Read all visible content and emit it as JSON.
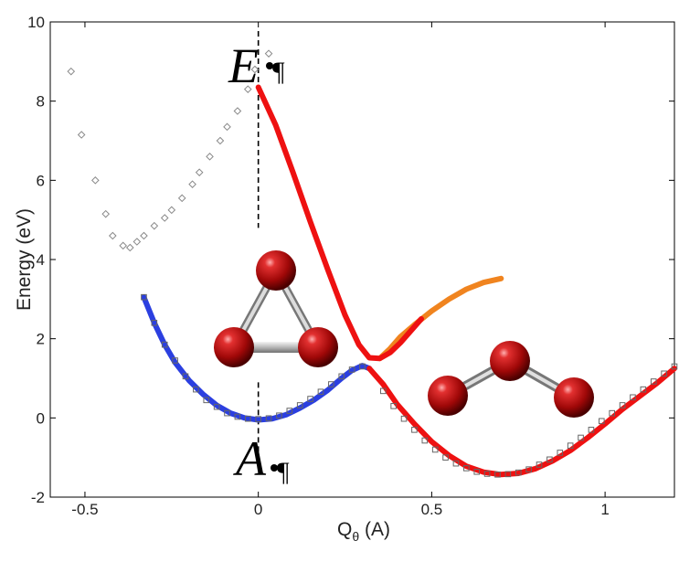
{
  "chart_data": {
    "type": "scatter",
    "xlabel": "Q",
    "xlabel_sub": "θ",
    "xlabel_unit": " (A)",
    "ylabel": "Energy (eV)",
    "xlim": [
      -0.6,
      1.2
    ],
    "ylim": [
      -2,
      10
    ],
    "xticks": [
      -0.5,
      0,
      0.5,
      1
    ],
    "xtick_labels": [
      "-0.5",
      "0",
      "0.5",
      "1"
    ],
    "yticks": [
      -2,
      0,
      2,
      4,
      6,
      8,
      10
    ],
    "ytick_labels": [
      "-2",
      "0",
      "2",
      "4",
      "6",
      "8",
      "10"
    ],
    "grid": false,
    "annotations": {
      "upper_state": "E",
      "lower_state": "A",
      "mark": "¶",
      "reference_line_x": 0
    },
    "series": [
      {
        "style": "markers-diamond",
        "color": "#888888",
        "x": [
          -0.54,
          -0.51,
          -0.47,
          -0.44,
          -0.42,
          -0.39,
          -0.37,
          -0.35,
          -0.33,
          -0.3,
          -0.27,
          -0.25,
          -0.22,
          -0.19,
          -0.17,
          -0.14,
          -0.11,
          -0.09,
          -0.06,
          -0.03,
          -0.01,
          0.03
        ],
        "y": [
          8.75,
          7.15,
          6.0,
          5.15,
          4.6,
          4.35,
          4.3,
          4.45,
          4.6,
          4.85,
          5.05,
          5.25,
          5.55,
          5.9,
          6.2,
          6.6,
          7.0,
          7.35,
          7.75,
          8.3,
          8.8,
          9.2
        ]
      },
      {
        "style": "line",
        "color": "#2b3fe0",
        "x": [
          -0.33,
          -0.3,
          -0.27,
          -0.24,
          -0.2,
          -0.16,
          -0.12,
          -0.08,
          -0.04,
          0.0,
          0.04,
          0.08,
          0.12,
          0.16,
          0.2,
          0.24,
          0.27,
          0.3,
          0.32
        ],
        "y": [
          3.05,
          2.4,
          1.85,
          1.4,
          0.95,
          0.6,
          0.32,
          0.12,
          0.0,
          -0.05,
          -0.02,
          0.08,
          0.25,
          0.45,
          0.7,
          1.0,
          1.2,
          1.32,
          1.25
        ]
      },
      {
        "style": "line",
        "color": "#f0841f",
        "x": [
          0.35,
          0.38,
          0.41,
          0.45,
          0.5,
          0.55,
          0.6,
          0.65,
          0.7
        ],
        "y": [
          1.5,
          1.75,
          2.05,
          2.35,
          2.7,
          3.0,
          3.25,
          3.42,
          3.52
        ]
      },
      {
        "style": "line",
        "color": "#ee1111",
        "x": [
          0.0,
          0.05,
          0.1,
          0.15,
          0.2,
          0.25,
          0.29,
          0.32,
          0.35,
          0.38,
          0.41,
          0.44,
          0.47
        ],
        "y": [
          8.35,
          7.4,
          6.2,
          4.95,
          3.75,
          2.6,
          1.85,
          1.52,
          1.5,
          1.65,
          1.9,
          2.2,
          2.5
        ]
      },
      {
        "style": "line",
        "color": "#ee1111",
        "x": [
          0.32,
          0.36,
          0.4,
          0.45,
          0.5,
          0.55,
          0.6,
          0.65,
          0.7,
          0.75,
          0.8,
          0.85,
          0.9,
          0.95,
          1.0,
          1.05,
          1.1,
          1.15,
          1.2
        ],
        "y": [
          1.25,
          0.85,
          0.35,
          -0.15,
          -0.6,
          -0.95,
          -1.22,
          -1.37,
          -1.43,
          -1.4,
          -1.28,
          -1.08,
          -0.82,
          -0.5,
          -0.15,
          0.22,
          0.55,
          0.88,
          1.25
        ]
      },
      {
        "style": "markers-square",
        "color": "#666666",
        "x": [
          -0.33,
          -0.3,
          -0.27,
          -0.24,
          -0.21,
          -0.18,
          -0.15,
          -0.12,
          -0.09,
          -0.06,
          -0.03,
          0.0,
          0.03,
          0.06,
          0.09,
          0.12,
          0.15,
          0.18,
          0.21,
          0.24,
          0.27,
          0.3,
          0.36,
          0.39,
          0.42,
          0.45,
          0.48,
          0.51,
          0.54,
          0.57,
          0.6,
          0.63,
          0.66,
          0.69,
          0.72,
          0.75,
          0.78,
          0.81,
          0.84,
          0.87,
          0.9,
          0.93,
          0.96,
          0.99,
          1.02,
          1.05,
          1.08,
          1.11,
          1.14,
          1.17,
          1.2
        ],
        "y": [
          3.05,
          2.4,
          1.85,
          1.45,
          1.05,
          0.72,
          0.45,
          0.28,
          0.12,
          0.03,
          -0.02,
          -0.03,
          -0.01,
          0.06,
          0.18,
          0.32,
          0.48,
          0.66,
          0.85,
          1.05,
          1.22,
          1.3,
          0.68,
          0.3,
          -0.02,
          -0.3,
          -0.57,
          -0.8,
          -1.0,
          -1.15,
          -1.27,
          -1.36,
          -1.41,
          -1.43,
          -1.42,
          -1.38,
          -1.3,
          -1.18,
          -1.05,
          -0.88,
          -0.7,
          -0.5,
          -0.3,
          -0.08,
          0.12,
          0.32,
          0.52,
          0.72,
          0.92,
          1.12,
          1.3
        ]
      }
    ]
  },
  "molecules": [
    {
      "shape": "triangle",
      "atom_color": "#b01010",
      "bond_color": "#a8a8a8"
    },
    {
      "shape": "bent",
      "atom_color": "#b01010",
      "bond_color": "#a8a8a8"
    }
  ]
}
